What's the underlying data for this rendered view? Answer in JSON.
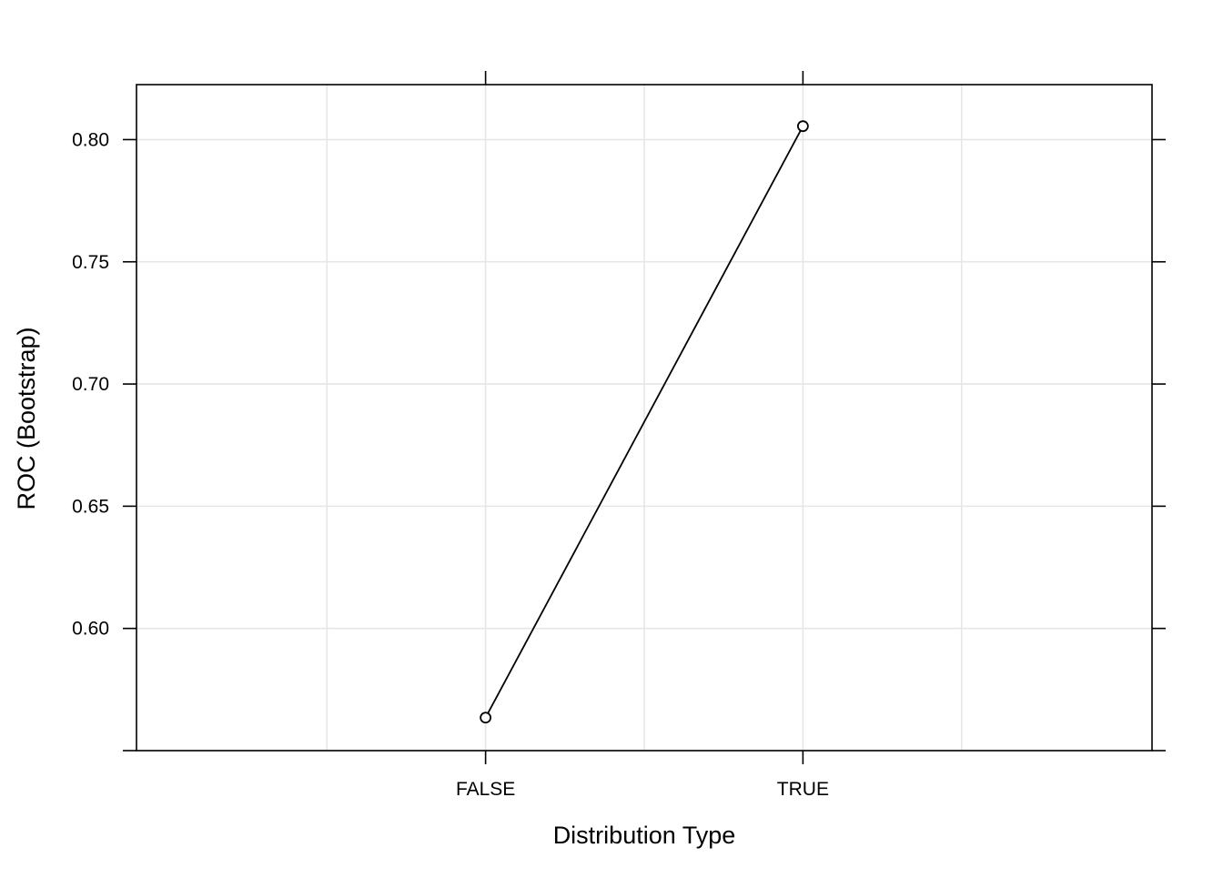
{
  "chart_data": {
    "type": "line",
    "title": "",
    "xlabel": "Distribution Type",
    "ylabel": "ROC (Bootstrap)",
    "categories": [
      "FALSE",
      "TRUE"
    ],
    "series": [
      {
        "values": [
          0.5635,
          0.8055
        ]
      }
    ],
    "x_tick_labels": [
      "FALSE",
      "TRUE"
    ],
    "y_ticks": [
      0.6,
      0.65,
      0.7,
      0.75,
      0.8
    ],
    "y_tick_labels": [
      "0.60",
      "0.65",
      "0.70",
      "0.75",
      "0.80"
    ],
    "ylim": [
      0.55,
      0.8225
    ],
    "grid": true,
    "marker": "open-circle",
    "colors": {
      "line": "#000000",
      "grid": "#e6e6e6",
      "frame": "#000000",
      "background": "#ffffff"
    }
  }
}
